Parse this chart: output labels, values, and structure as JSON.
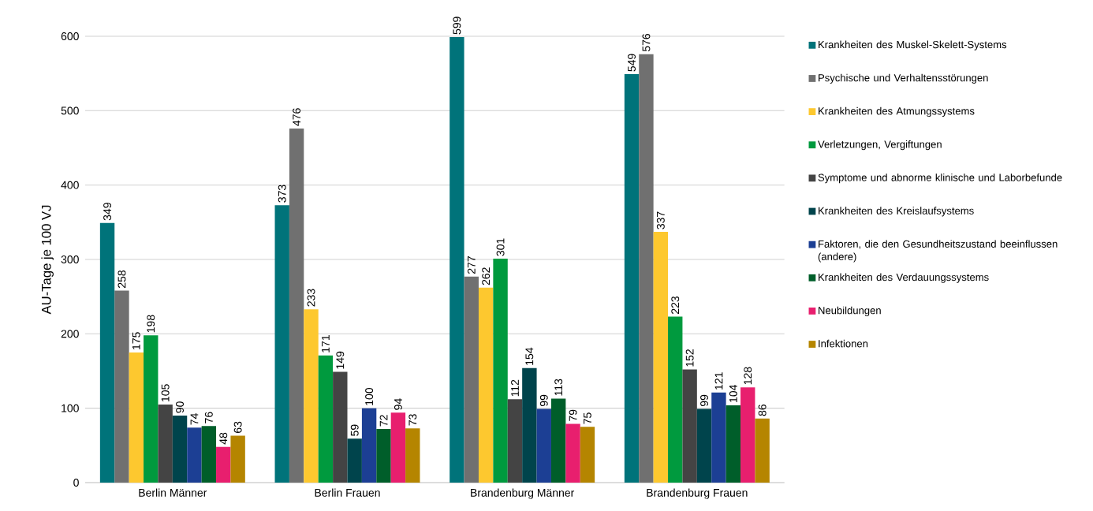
{
  "chart_data": {
    "type": "bar",
    "ylabel": "AU-Tage je 100 VJ",
    "categories": [
      "Berlin Männer",
      "Berlin Frauen",
      "Brandenburg Männer",
      "Brandenburg Frauen"
    ],
    "series": [
      {
        "name": "Krankheiten des Muskel-Skelett-Systems",
        "color": "#00737a",
        "values": [
          349,
          373,
          599,
          549
        ]
      },
      {
        "name": "Psychische und Verhaltensstörungen",
        "color": "#707070",
        "values": [
          258,
          476,
          277,
          576
        ]
      },
      {
        "name": "Krankheiten des Atmungssystems",
        "color": "#fdc82f",
        "values": [
          175,
          233,
          262,
          337
        ]
      },
      {
        "name": "Verletzungen, Vergiftungen",
        "color": "#009a3e",
        "values": [
          198,
          171,
          301,
          223
        ]
      },
      {
        "name": "Symptome und abnorme klinische und Laborbefunde",
        "color": "#444444",
        "values": [
          105,
          149,
          112,
          152
        ]
      },
      {
        "name": "Krankheiten des Kreislaufsystems",
        "color": "#00444c",
        "values": [
          90,
          59,
          154,
          99
        ]
      },
      {
        "name": "Faktoren, die den Gesundheitszustand beeinflussen (andere)",
        "color": "#1c3f94",
        "values": [
          74,
          100,
          99,
          121
        ]
      },
      {
        "name": "Krankheiten des Verdauungssystems",
        "color": "#005e2a",
        "values": [
          76,
          72,
          113,
          104
        ]
      },
      {
        "name": "Neubildungen",
        "color": "#e81f6e",
        "values": [
          48,
          94,
          79,
          128
        ]
      },
      {
        "name": "Infektionen",
        "color": "#b58500",
        "values": [
          63,
          73,
          75,
          86
        ]
      }
    ],
    "ylim": [
      0,
      600
    ],
    "yticks": [
      0,
      100,
      200,
      300,
      400,
      500,
      600
    ],
    "grid": "y",
    "legend": "right",
    "data_labels": true
  }
}
